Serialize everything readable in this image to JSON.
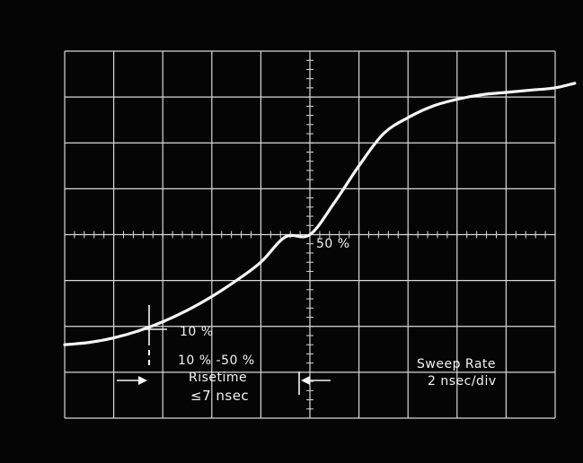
{
  "chart_data": {
    "type": "line",
    "title": "",
    "xlabel": "",
    "ylabel": "",
    "grid": true,
    "x_divisions": 10,
    "y_divisions": 8,
    "xlim": [
      0,
      20
    ],
    "ylim": [
      0,
      8
    ],
    "x_unit": "nsec",
    "series": [
      {
        "x": [
          0.0,
          1.0,
          2.0,
          3.0,
          4.0,
          5.0,
          6.0,
          7.0,
          8.0,
          9.0,
          10.0,
          11.0,
          12.0,
          13.0,
          14.0,
          15.0,
          16.0,
          17.0,
          18.0,
          19.0,
          20.0,
          20.8
        ],
        "y": [
          1.6,
          1.65,
          1.75,
          1.9,
          2.1,
          2.35,
          2.65,
          3.0,
          3.4,
          3.95,
          4.0,
          4.7,
          5.5,
          6.2,
          6.55,
          6.8,
          6.95,
          7.05,
          7.1,
          7.15,
          7.2,
          7.3
        ]
      }
    ],
    "annotations": {
      "fifty_percent": "50 %",
      "ten_percent": "10 %",
      "range": "10 % -50 %",
      "risetime": "Risetime",
      "risetime_value": "≤7 nsec",
      "sweep_title": "Sweep Rate",
      "sweep_value": "2 nsec/div"
    }
  }
}
